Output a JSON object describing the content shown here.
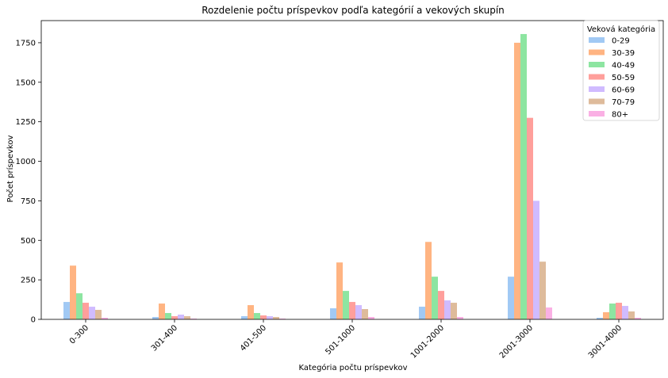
{
  "chart_data": {
    "type": "bar",
    "title": "Rozdelenie počtu príspevkov podľa kategórií a vekových skupín",
    "xlabel": "Kategória počtu príspevkov",
    "ylabel": "Počet príspevkov",
    "ylim": [
      0,
      1890
    ],
    "yticks": [
      0,
      250,
      500,
      750,
      1000,
      1250,
      1500,
      1750
    ],
    "ytick_labels": [
      "0",
      "250",
      "500",
      "750",
      "1000",
      "1250",
      "1500",
      "1750"
    ],
    "grid": false,
    "legend_title": "Veková kategória",
    "legend_position": "top-right",
    "categories": [
      "0-300",
      "301-400",
      "401-500",
      "501-1000",
      "1001-2000",
      "2001-3000",
      "3001-4000"
    ],
    "series": [
      {
        "name": "0-29",
        "color": "#a1c9f4",
        "values": [
          110,
          15,
          20,
          70,
          80,
          270,
          10
        ]
      },
      {
        "name": "30-39",
        "color": "#ffb482",
        "values": [
          340,
          100,
          90,
          360,
          490,
          1750,
          45
        ]
      },
      {
        "name": "40-49",
        "color": "#8de5a1",
        "values": [
          165,
          40,
          40,
          180,
          270,
          1805,
          100
        ]
      },
      {
        "name": "50-59",
        "color": "#ff9f9b",
        "values": [
          105,
          20,
          25,
          110,
          180,
          1275,
          105
        ]
      },
      {
        "name": "60-69",
        "color": "#d0bbff",
        "values": [
          80,
          30,
          20,
          90,
          120,
          750,
          85
        ]
      },
      {
        "name": "70-79",
        "color": "#debb9b",
        "values": [
          60,
          20,
          15,
          65,
          105,
          365,
          50
        ]
      },
      {
        "name": "80+",
        "color": "#fab0e4",
        "values": [
          10,
          5,
          5,
          15,
          15,
          75,
          10
        ]
      }
    ]
  }
}
